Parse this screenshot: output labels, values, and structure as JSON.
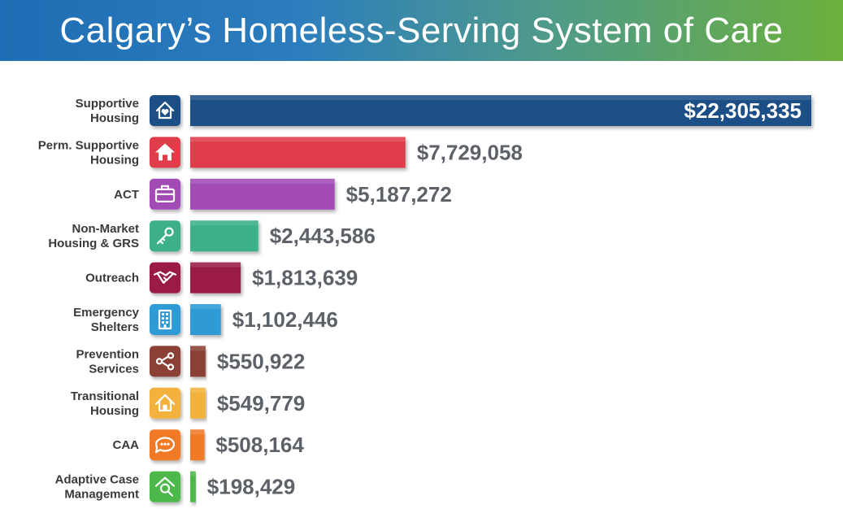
{
  "header": {
    "title": "Calgary’s Homeless-Serving System of Care"
  },
  "chart_data": {
    "type": "bar",
    "orientation": "horizontal",
    "title": "Calgary’s Homeless-Serving System of Care",
    "xlabel": "",
    "ylabel": "",
    "xlim": [
      0,
      22305335
    ],
    "grid": false,
    "legend": "none",
    "categories": [
      [
        "Supportive",
        "Housing"
      ],
      [
        "Perm. Supportive",
        "Housing"
      ],
      [
        "ACT"
      ],
      [
        "Non-Market",
        "Housing & GRS"
      ],
      [
        "Outreach"
      ],
      [
        "Emergency",
        "Shelters"
      ],
      [
        "Prevention",
        "Services"
      ],
      [
        "Transitional",
        "Housing"
      ],
      [
        "CAA"
      ],
      [
        "Adaptive Case",
        "Management"
      ]
    ],
    "values": [
      22305335,
      7729058,
      5187272,
      2443586,
      1813639,
      1102446,
      550922,
      549779,
      508164,
      198429
    ],
    "value_labels": [
      "$22,305,335",
      "$7,729,058",
      "$5,187,272",
      "$2,443,586",
      "$1,813,639",
      "$1,102,446",
      "$550,922",
      "$549,779",
      "$508,164",
      "$198,429"
    ],
    "colors": [
      "#1b4f86",
      "#e03c4c",
      "#a24bb5",
      "#3bb08a",
      "#9a1a44",
      "#2f9bd6",
      "#8a3f36",
      "#f3b13d",
      "#f07a25",
      "#4cb848"
    ],
    "icons": [
      "home-heart-icon",
      "home-icon",
      "briefcase-icon",
      "key-icon",
      "handshake-icon",
      "building-icon",
      "share-network-icon",
      "home-outline-icon",
      "chat-bubble-icon",
      "home-search-icon"
    ]
  }
}
